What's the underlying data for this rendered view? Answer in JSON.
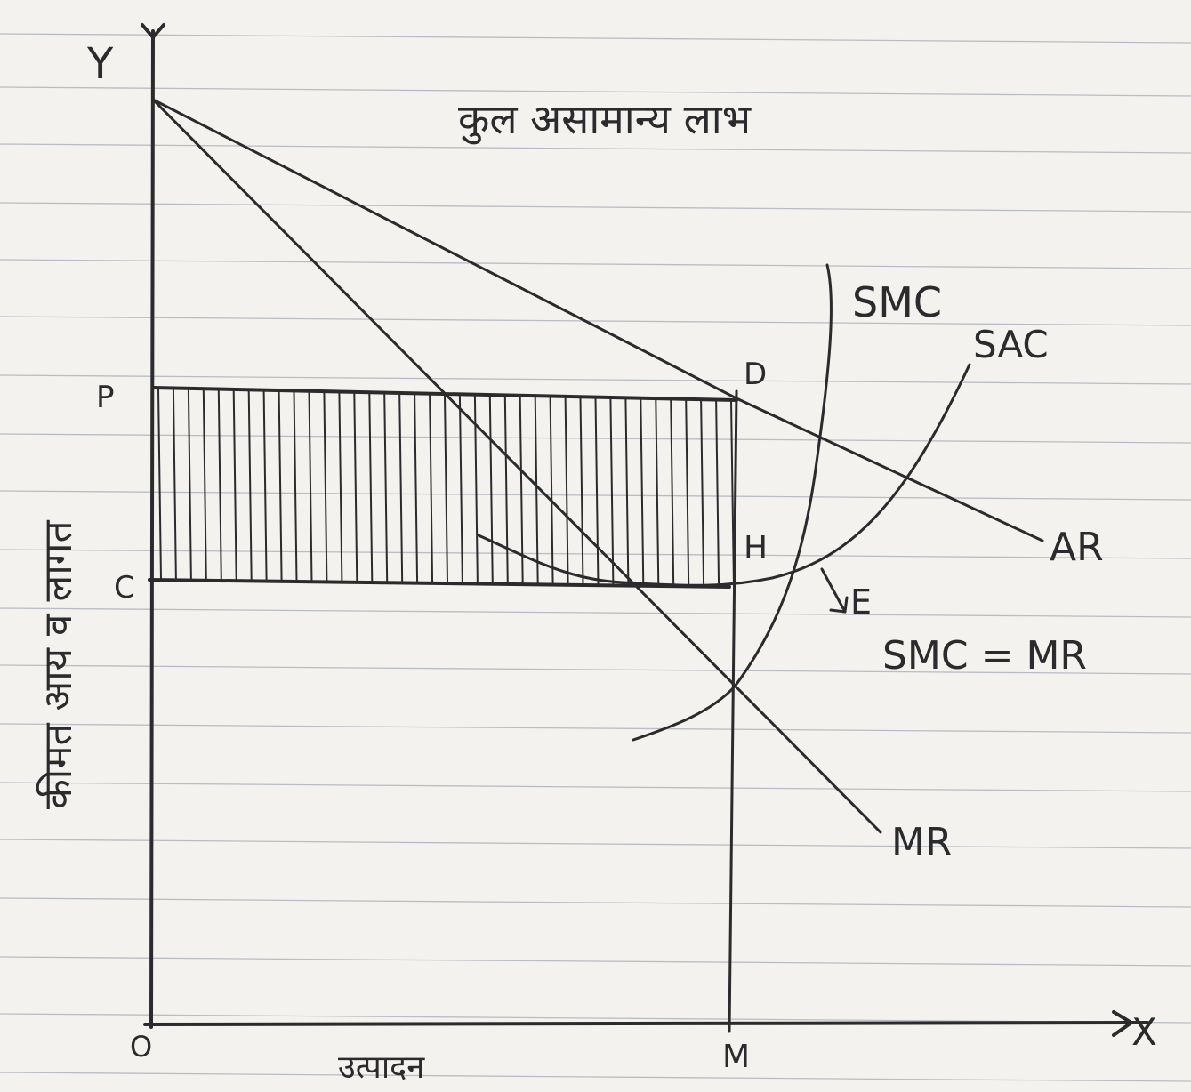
{
  "title": "कुल असामान्य लाभ",
  "y_axis": {
    "letter": "Y",
    "caption": "कीमत आय व लागत"
  },
  "x_axis": {
    "letter": "X",
    "caption": "उत्पादन"
  },
  "points": {
    "origin": "O",
    "p": "P",
    "c": "C",
    "d": "D",
    "h": "H",
    "e": "E",
    "m": "M"
  },
  "curves": {
    "ar": "AR",
    "mr": "MR",
    "smc": "SMC",
    "sac": "SAC"
  },
  "condition": "SMC = MR"
}
